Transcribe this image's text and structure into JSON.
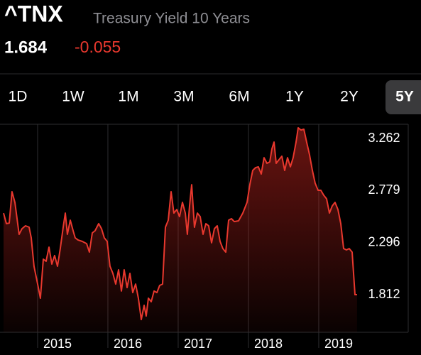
{
  "header": {
    "symbol": "^TNX",
    "name": "Treasury Yield 10 Years",
    "price": "1.684",
    "change": "-0.055"
  },
  "ranges": [
    "1D",
    "1W",
    "1M",
    "3M",
    "6M",
    "1Y",
    "2Y",
    "5Y"
  ],
  "selected_range": 7,
  "chart_data": {
    "type": "area",
    "color": "#e8382e",
    "x": [
      2014.515,
      2014.556,
      2014.596,
      2014.636,
      2014.677,
      2014.737,
      2014.778,
      2014.828,
      2014.879,
      2014.909,
      2014.949,
      2015.0,
      2015.04,
      2015.081,
      2015.121,
      2015.162,
      2015.202,
      2015.242,
      2015.283,
      2015.323,
      2015.364,
      2015.394,
      2015.424,
      2015.465,
      2015.505,
      2015.535,
      2015.576,
      2015.636,
      2015.697,
      2015.737,
      2015.778,
      2015.818,
      2015.869,
      2015.909,
      2015.949,
      2015.99,
      2016.03,
      2016.071,
      2016.111,
      2016.152,
      2016.192,
      2016.232,
      2016.273,
      2016.313,
      2016.354,
      2016.394,
      2016.434,
      2016.475,
      2016.515,
      2016.545,
      2016.576,
      2016.616,
      2016.657,
      2016.697,
      2016.737,
      2016.778,
      2016.818,
      2016.859,
      2016.899,
      2016.939,
      2016.98,
      2017.02,
      2017.061,
      2017.101,
      2017.131,
      2017.162,
      2017.192,
      2017.232,
      2017.273,
      2017.313,
      2017.354,
      2017.394,
      2017.434,
      2017.475,
      2017.515,
      2017.556,
      2017.596,
      2017.636,
      2017.677,
      2017.717,
      2017.758,
      2017.798,
      2017.859,
      2017.919,
      2017.98,
      2018.02,
      2018.061,
      2018.101,
      2018.141,
      2018.182,
      2018.222,
      2018.263,
      2018.303,
      2018.333,
      2018.364,
      2018.394,
      2018.434,
      2018.475,
      2018.515,
      2018.556,
      2018.596,
      2018.636,
      2018.677,
      2018.707,
      2018.747,
      2018.788,
      2018.828,
      2018.869,
      2018.909,
      2018.949,
      2018.99,
      2019.03,
      2019.071,
      2019.111,
      2019.152,
      2019.192,
      2019.232,
      2019.273,
      2019.313,
      2019.354,
      2019.394,
      2019.434,
      2019.475,
      2019.515,
      2019.545
    ],
    "values": [
      2.571,
      2.473,
      2.479,
      2.769,
      2.67,
      2.374,
      2.426,
      2.453,
      2.44,
      2.341,
      2.078,
      1.913,
      1.782,
      2.144,
      2.124,
      2.255,
      2.098,
      2.177,
      2.078,
      2.242,
      2.44,
      2.571,
      2.374,
      2.505,
      2.407,
      2.341,
      2.321,
      2.308,
      2.288,
      2.209,
      2.387,
      2.407,
      2.473,
      2.426,
      2.341,
      2.308,
      2.078,
      2.012,
      1.913,
      2.045,
      1.848,
      2.045,
      1.88,
      2.012,
      1.834,
      1.913,
      1.782,
      1.584,
      1.716,
      1.617,
      1.782,
      1.749,
      1.848,
      1.834,
      1.9,
      1.913,
      2.44,
      2.505,
      2.769,
      2.571,
      2.604,
      2.538,
      2.67,
      2.571,
      2.374,
      2.637,
      2.834,
      2.44,
      2.571,
      2.538,
      2.374,
      2.473,
      2.453,
      2.295,
      2.426,
      2.453,
      2.308,
      2.242,
      2.209,
      2.505,
      2.519,
      2.492,
      2.499,
      2.571,
      2.67,
      2.834,
      2.966,
      2.992,
      2.999,
      2.933,
      3.084,
      3.032,
      3.045,
      3.163,
      3.229,
      3.032,
      3.065,
      3.098,
      2.966,
      3.084,
      3.0,
      3.084,
      3.229,
      3.361,
      3.341,
      3.348,
      3.229,
      3.111,
      2.966,
      2.848,
      2.782,
      2.782,
      2.736,
      2.703,
      2.571,
      2.637,
      2.67,
      2.604,
      2.473,
      2.242,
      2.229,
      2.242,
      2.209,
      1.815,
      1.815
    ],
    "xlim": [
      2014.465,
      2020.273
    ],
    "xticks": [
      2015,
      2016,
      2017,
      2018,
      2019
    ],
    "ylim": [
      1.466,
      3.394
    ],
    "yticks": [
      1.812,
      2.296,
      2.779,
      3.262
    ]
  }
}
